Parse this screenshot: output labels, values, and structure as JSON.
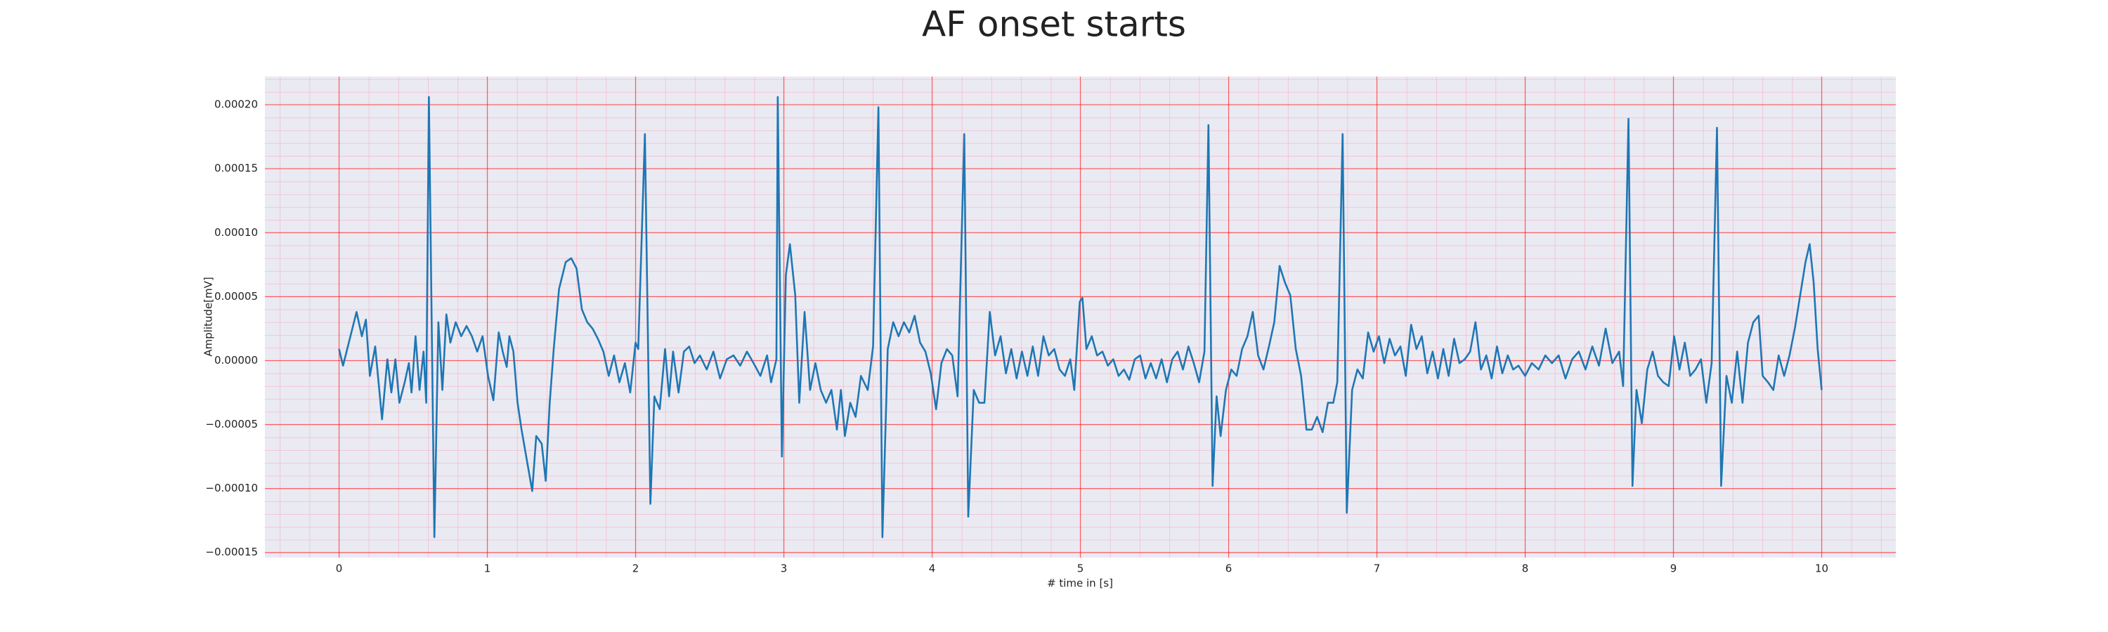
{
  "chart_data": {
    "type": "line",
    "title": "AF onset starts",
    "xlabel": "# time in [s]",
    "ylabel": "Amplitude[mV]",
    "color": "#1f77b4",
    "grid": true,
    "xlim": [
      -0.5,
      10.5
    ],
    "xticks": [
      0,
      1,
      2,
      3,
      4,
      5,
      6,
      7,
      8,
      9,
      10
    ],
    "ylim": [
      -0.000154,
      0.000222
    ],
    "yticks": [
      {
        "value": -0.00015,
        "label": "−0.00015"
      },
      {
        "value": -0.0001,
        "label": "−0.00010"
      },
      {
        "value": -5e-05,
        "label": "−0.00005"
      },
      {
        "value": 0,
        "label": "0.00000"
      },
      {
        "value": 5e-05,
        "label": "0.00005"
      },
      {
        "value": 0.0001,
        "label": "0.00010"
      },
      {
        "value": 0.00015,
        "label": "0.00015"
      },
      {
        "value": 0.0002,
        "label": "0.00020"
      }
    ],
    "x": [
      0,
      0.027,
      0.118,
      0.154,
      0.181,
      0.208,
      0.244,
      0.29,
      0.326,
      0.353,
      0.38,
      0.407,
      0.443,
      0.471,
      0.489,
      0.516,
      0.543,
      0.57,
      0.588,
      0.606,
      0.643,
      0.67,
      0.697,
      0.724,
      0.751,
      0.787,
      0.824,
      0.86,
      0.896,
      0.932,
      0.968,
      1.005,
      1.041,
      1.077,
      1.104,
      1.131,
      1.149,
      1.176,
      1.204,
      1.231,
      1.303,
      1.33,
      1.367,
      1.394,
      1.421,
      1.448,
      1.484,
      1.529,
      1.566,
      1.602,
      1.638,
      1.674,
      1.71,
      1.746,
      1.783,
      1.819,
      1.855,
      1.891,
      1.928,
      1.964,
      2.0,
      2.018,
      2.063,
      2.1,
      2.127,
      2.163,
      2.199,
      2.226,
      2.253,
      2.29,
      2.326,
      2.362,
      2.398,
      2.434,
      2.48,
      2.525,
      2.57,
      2.615,
      2.661,
      2.706,
      2.751,
      2.796,
      2.842,
      2.887,
      2.914,
      2.95,
      2.959,
      2.987,
      3.014,
      3.041,
      3.077,
      3.104,
      3.14,
      3.177,
      3.213,
      3.249,
      3.285,
      3.321,
      3.358,
      3.385,
      3.412,
      3.448,
      3.484,
      3.52,
      3.566,
      3.602,
      3.638,
      3.665,
      3.701,
      3.738,
      3.774,
      3.81,
      3.846,
      3.882,
      3.919,
      3.955,
      3.991,
      4.027,
      4.063,
      4.1,
      4.136,
      4.172,
      4.217,
      4.244,
      4.281,
      4.317,
      4.353,
      4.389,
      4.425,
      4.462,
      4.498,
      4.534,
      4.57,
      4.606,
      4.643,
      4.679,
      4.715,
      4.751,
      4.787,
      4.824,
      4.86,
      4.896,
      4.932,
      4.959,
      4.996,
      5.014,
      5.041,
      5.077,
      5.113,
      5.149,
      5.186,
      5.222,
      5.258,
      5.294,
      5.33,
      5.367,
      5.403,
      5.439,
      5.475,
      5.511,
      5.548,
      5.584,
      5.62,
      5.656,
      5.692,
      5.729,
      5.765,
      5.801,
      5.837,
      5.864,
      5.892,
      5.919,
      5.946,
      5.982,
      6.018,
      6.054,
      6.091,
      6.127,
      6.163,
      6.199,
      6.235,
      6.272,
      6.308,
      6.344,
      6.38,
      6.416,
      6.453,
      6.489,
      6.525,
      6.561,
      6.597,
      6.634,
      6.67,
      6.706,
      6.733,
      6.769,
      6.797,
      6.833,
      6.869,
      6.905,
      6.941,
      6.978,
      7.014,
      7.05,
      7.086,
      7.122,
      7.159,
      7.195,
      7.231,
      7.267,
      7.303,
      7.34,
      7.376,
      7.412,
      7.448,
      7.484,
      7.521,
      7.557,
      7.593,
      7.629,
      7.665,
      7.702,
      7.738,
      7.774,
      7.81,
      7.846,
      7.883,
      7.919,
      7.955,
      8.0,
      8.045,
      8.091,
      8.136,
      8.181,
      8.226,
      8.272,
      8.317,
      8.362,
      8.407,
      8.453,
      8.498,
      8.543,
      8.588,
      8.634,
      8.661,
      8.697,
      8.724,
      8.751,
      8.787,
      8.824,
      8.86,
      8.896,
      8.932,
      8.968,
      9.005,
      9.041,
      9.077,
      9.113,
      9.149,
      9.186,
      9.222,
      9.258,
      9.294,
      9.322,
      9.358,
      9.394,
      9.43,
      9.466,
      9.503,
      9.539,
      9.575,
      9.602,
      9.638,
      9.674,
      9.71,
      9.747,
      9.783,
      9.819,
      9.855,
      9.891,
      9.919,
      9.946,
      9.973,
      10.0
    ],
    "values": [
      9e-06,
      -4e-06,
      3.8e-05,
      1.9e-05,
      3.2e-05,
      -1.2e-05,
      1.1e-05,
      -4.6e-05,
      1e-06,
      -2.5e-05,
      1e-06,
      -3.3e-05,
      -1.7e-05,
      -2e-06,
      -2.5e-05,
      1.9e-05,
      -2.3e-05,
      7e-06,
      -3.3e-05,
      0.000206,
      -0.000138,
      3e-05,
      -2.3e-05,
      3.6e-05,
      1.4e-05,
      3e-05,
      1.9e-05,
      2.7e-05,
      1.9e-05,
      7e-06,
      1.9e-05,
      -1.2e-05,
      -3.1e-05,
      2.2e-05,
      7e-06,
      -5e-06,
      1.9e-05,
      7e-06,
      -3.3e-05,
      -5.4e-05,
      -0.000102,
      -5.9e-05,
      -6.5e-05,
      -9.4e-05,
      -3.3e-05,
      9e-06,
      5.6e-05,
      7.7e-05,
      8e-05,
      7.2e-05,
      4e-05,
      3e-05,
      2.5e-05,
      1.7e-05,
      7e-06,
      -1.2e-05,
      4e-06,
      -1.7e-05,
      -2e-06,
      -2.5e-05,
      1.4e-05,
      9e-06,
      0.000177,
      -0.000112,
      -2.8e-05,
      -3.8e-05,
      9e-06,
      -2.8e-05,
      7e-06,
      -2.5e-05,
      7e-06,
      1.1e-05,
      -2e-06,
      4e-06,
      -7e-06,
      7e-06,
      -1.4e-05,
      1e-06,
      4e-06,
      -4e-06,
      7e-06,
      -2e-06,
      -1.2e-05,
      4e-06,
      -1.7e-05,
      1e-06,
      0.000206,
      -7.5e-05,
      6.7e-05,
      9.1e-05,
      5.1e-05,
      -3.3e-05,
      3.8e-05,
      -2.3e-05,
      -2e-06,
      -2.3e-05,
      -3.3e-05,
      -2.3e-05,
      -5.4e-05,
      -2.3e-05,
      -5.9e-05,
      -3.3e-05,
      -4.4e-05,
      -1.2e-05,
      -2.3e-05,
      1.1e-05,
      0.000198,
      -0.000138,
      9e-06,
      3e-05,
      1.9e-05,
      3e-05,
      2.2e-05,
      3.5e-05,
      1.4e-05,
      7e-06,
      -1e-05,
      -3.8e-05,
      -2e-06,
      9e-06,
      4e-06,
      -2.8e-05,
      0.000177,
      -0.000122,
      -2.3e-05,
      -3.3e-05,
      -3.3e-05,
      3.8e-05,
      4e-06,
      1.9e-05,
      -1e-05,
      9e-06,
      -1.4e-05,
      7e-06,
      -1.2e-05,
      1.1e-05,
      -1.2e-05,
      1.9e-05,
      4e-06,
      9e-06,
      -7e-06,
      -1.2e-05,
      1e-06,
      -2.3e-05,
      4.6e-05,
      4.9e-05,
      9e-06,
      1.9e-05,
      4e-06,
      7e-06,
      -4e-06,
      1e-06,
      -1.2e-05,
      -7e-06,
      -1.5e-05,
      1e-06,
      4e-06,
      -1.4e-05,
      -2e-06,
      -1.4e-05,
      1e-06,
      -1.7e-05,
      1e-06,
      7e-06,
      -7e-06,
      1.1e-05,
      -2e-06,
      -1.7e-05,
      7e-06,
      0.000184,
      -9.8e-05,
      -2.8e-05,
      -5.9e-05,
      -2.3e-05,
      -7e-06,
      -1.2e-05,
      9e-06,
      1.9e-05,
      3.8e-05,
      4e-06,
      -7e-06,
      1.1e-05,
      3e-05,
      7.4e-05,
      6.1e-05,
      5.1e-05,
      9e-06,
      -1.2e-05,
      -5.4e-05,
      -5.4e-05,
      -4.4e-05,
      -5.6e-05,
      -3.3e-05,
      -3.3e-05,
      -1.7e-05,
      0.000177,
      -0.000119,
      -2.3e-05,
      -7e-06,
      -1.4e-05,
      2.2e-05,
      7e-06,
      1.9e-05,
      -2e-06,
      1.7e-05,
      4e-06,
      1.1e-05,
      -1.2e-05,
      2.8e-05,
      9e-06,
      1.9e-05,
      -1e-05,
      7e-06,
      -1.4e-05,
      9e-06,
      -1.2e-05,
      1.7e-05,
      -2e-06,
      1e-06,
      7e-06,
      3e-05,
      -7e-06,
      4e-06,
      -1.4e-05,
      1.1e-05,
      -1e-05,
      4e-06,
      -7e-06,
      -4e-06,
      -1.2e-05,
      -2e-06,
      -7e-06,
      4e-06,
      -2e-06,
      4e-06,
      -1.4e-05,
      1e-06,
      7e-06,
      -7e-06,
      1.1e-05,
      -4e-06,
      2.5e-05,
      -2e-06,
      7e-06,
      -2e-05,
      0.000189,
      -9.8e-05,
      -2.3e-05,
      -4.9e-05,
      -7e-06,
      7e-06,
      -1.2e-05,
      -1.7e-05,
      -2e-05,
      1.9e-05,
      -7e-06,
      1.4e-05,
      -1.2e-05,
      -7e-06,
      1e-06,
      -3.3e-05,
      -2e-06,
      0.000182,
      -9.8e-05,
      -1.2e-05,
      -3.3e-05,
      7e-06,
      -3.3e-05,
      1.4e-05,
      3e-05,
      3.5e-05,
      -1.2e-05,
      -1.7e-05,
      -2.3e-05,
      4e-06,
      -1.2e-05,
      4e-06,
      2.5e-05,
      5.1e-05,
      7.7e-05,
      9.1e-05,
      6.1e-05,
      9e-06,
      -2.3e-05
    ]
  }
}
